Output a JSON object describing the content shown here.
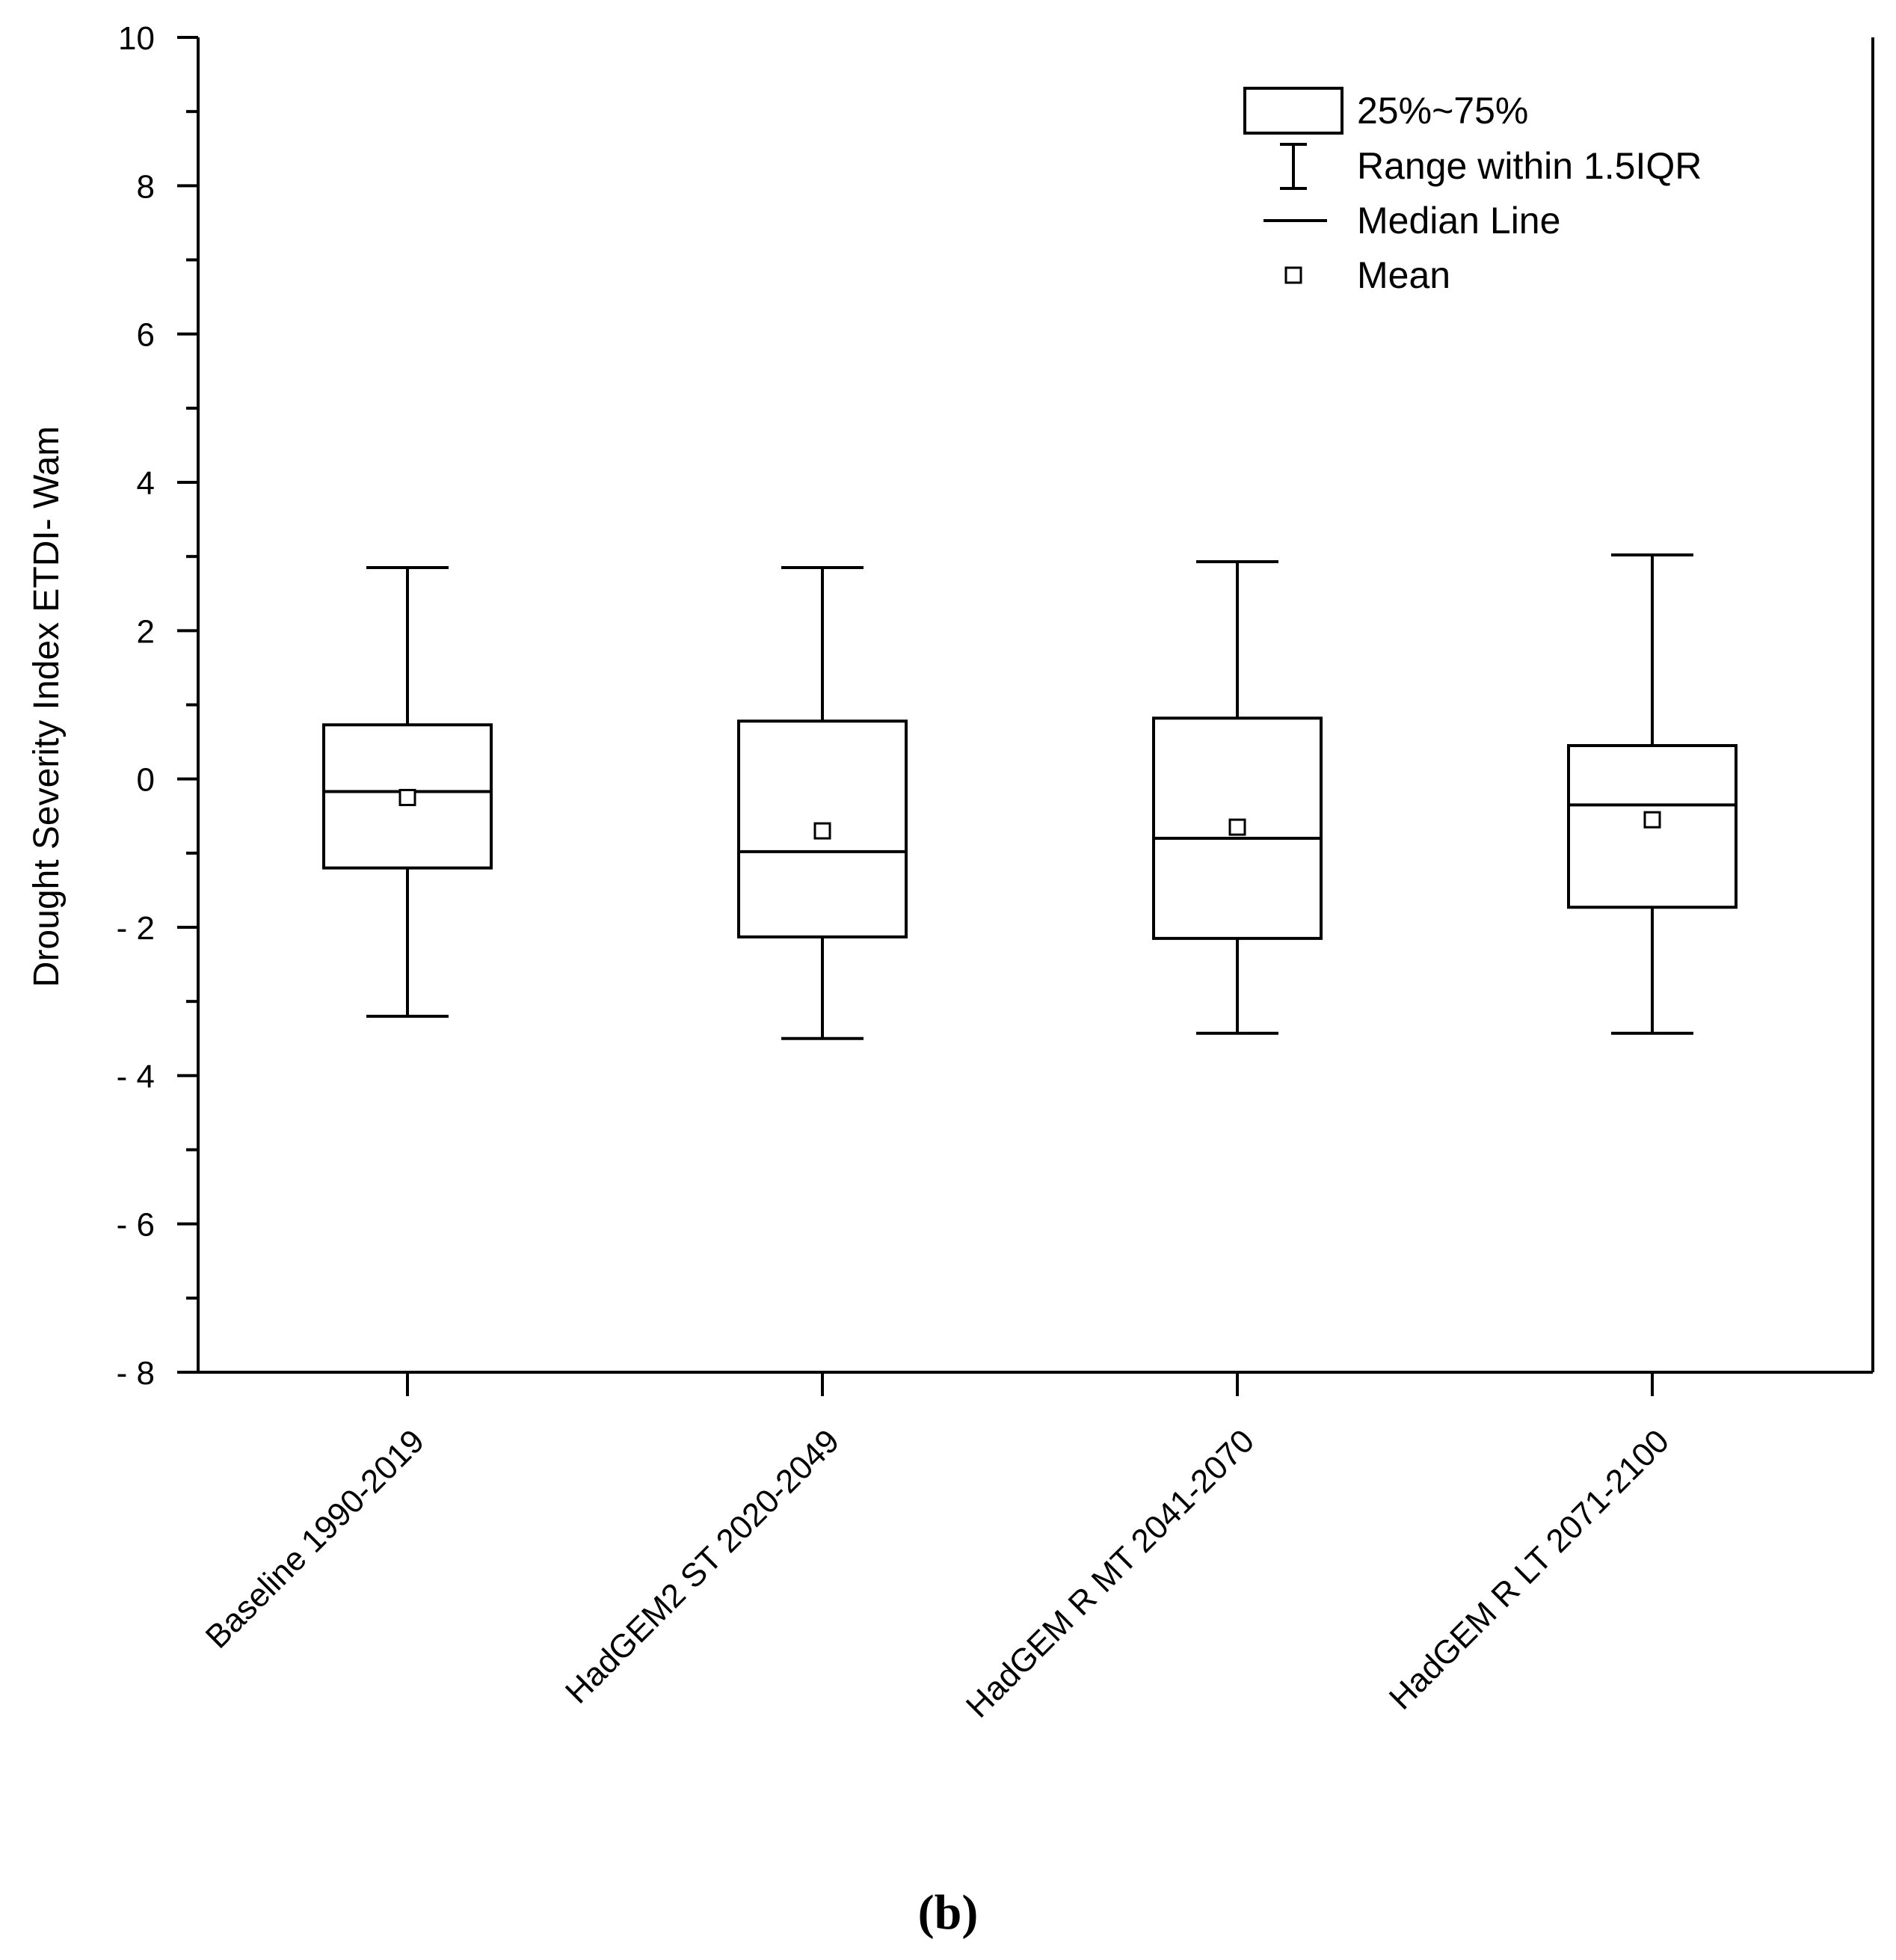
{
  "chart_data": {
    "type": "box",
    "ylabel": "Drought Severity Index ETDI- Wam",
    "xlabel": "",
    "ylim": [
      -8,
      10
    ],
    "yticks": [
      10,
      8,
      6,
      4,
      2,
      0,
      -2,
      -4,
      -6,
      -8
    ],
    "ytick_labels": [
      "10",
      "8",
      "6",
      "4",
      "2",
      "0",
      "- 2",
      "- 4",
      "- 6",
      "- 8"
    ],
    "categories": [
      "Baseline 1990-2019",
      "HadGEM2 ST 2020-2049",
      "HadGEM R MT 2041-2070",
      "HadGEM R LT 2071-2100"
    ],
    "boxes": [
      {
        "whisker_low": -3.2,
        "q1": -1.2,
        "median": -0.17,
        "q3": 0.73,
        "whisker_high": 2.85,
        "mean": -0.25
      },
      {
        "whisker_low": -3.5,
        "q1": -2.13,
        "median": -0.98,
        "q3": 0.78,
        "whisker_high": 2.85,
        "mean": -0.7
      },
      {
        "whisker_low": -3.43,
        "q1": -2.15,
        "median": -0.8,
        "q3": 0.82,
        "whisker_high": 2.93,
        "mean": -0.65
      },
      {
        "whisker_low": -3.43,
        "q1": -1.73,
        "median": -0.35,
        "q3": 0.45,
        "whisker_high": 3.02,
        "mean": -0.55
      }
    ],
    "legend": {
      "position": "top-right",
      "items": [
        "25%~75%",
        "Range within 1.5IQR",
        "Median Line",
        "Mean"
      ]
    }
  },
  "panel_label": "(b)"
}
